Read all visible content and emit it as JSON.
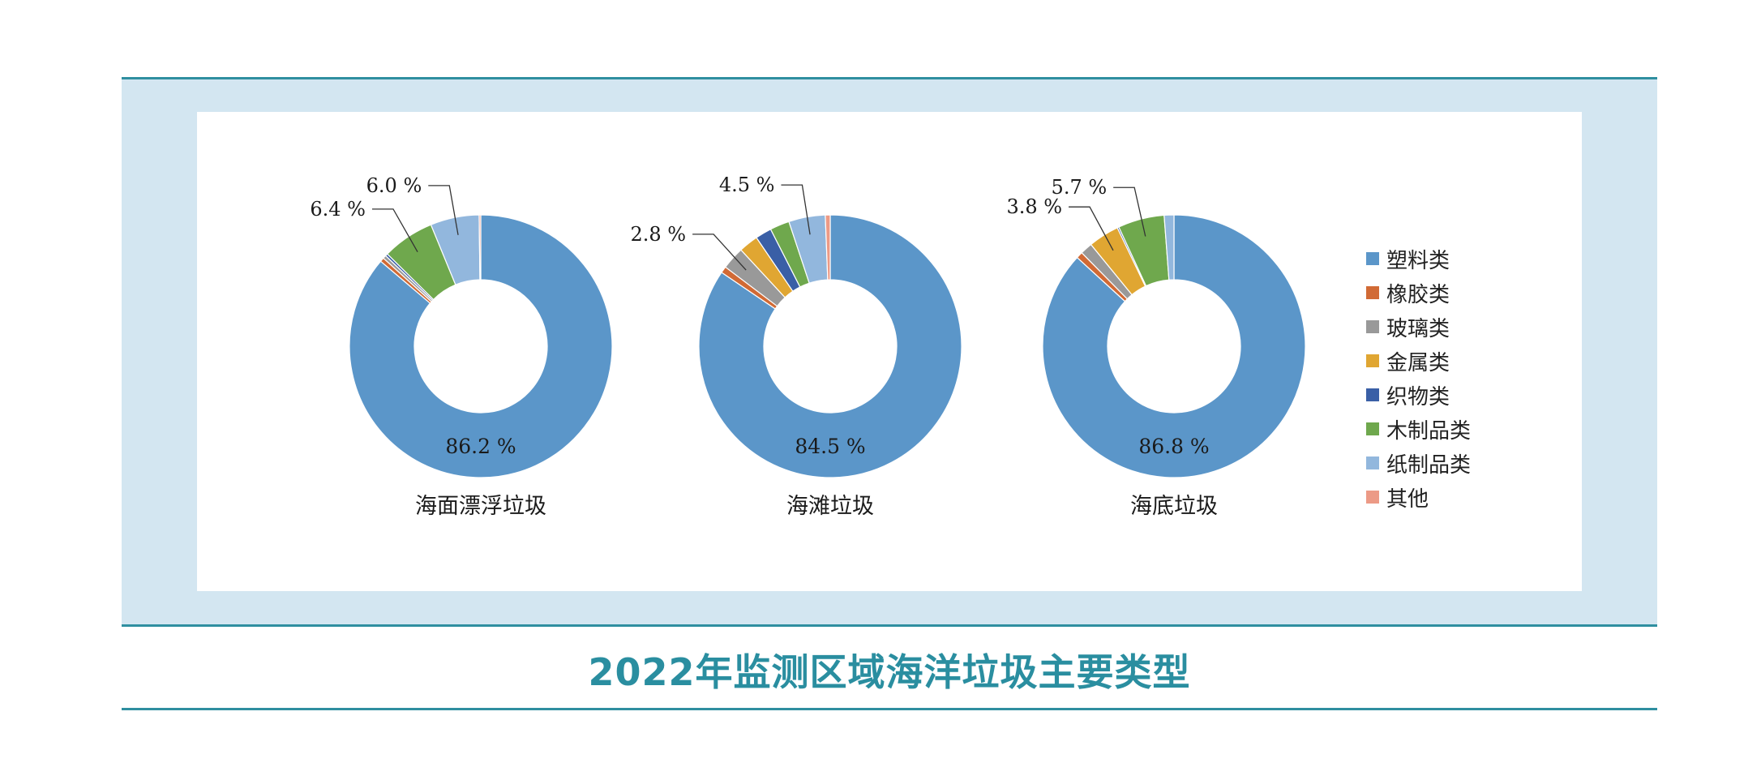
{
  "title": "2022年监测区域海洋垃圾主要类型",
  "colors": {
    "塑料类": "#5b96c9",
    "橡胶类": "#d16a35",
    "玻璃类": "#999999",
    "金属类": "#e0a632",
    "织物类": "#3a5fa6",
    "木制品类": "#6fa84d",
    "纸制品类": "#92b7dd",
    "其他": "#ec9a86"
  },
  "legend": [
    "塑料类",
    "橡胶类",
    "玻璃类",
    "金属类",
    "织物类",
    "木制品类",
    "纸制品类",
    "其他"
  ],
  "chart_data": [
    {
      "type": "pie",
      "title": "海面漂浮垃圾",
      "categories": [
        "塑料类",
        "橡胶类",
        "玻璃类",
        "金属类",
        "织物类",
        "木制品类",
        "纸制品类",
        "其他"
      ],
      "values": [
        86.2,
        0.5,
        0.4,
        0.0,
        0.3,
        6.4,
        6.0,
        0.2
      ],
      "labels": [
        {
          "category": "塑料类",
          "text": "86.2 %"
        },
        {
          "category": "木制品类",
          "text": "6.4 %"
        },
        {
          "category": "纸制品类",
          "text": "6.0 %"
        }
      ]
    },
    {
      "type": "pie",
      "title": "海滩垃圾",
      "categories": [
        "塑料类",
        "橡胶类",
        "玻璃类",
        "金属类",
        "织物类",
        "木制品类",
        "纸制品类",
        "其他"
      ],
      "values": [
        84.5,
        0.8,
        2.8,
        2.4,
        2.0,
        2.4,
        4.5,
        0.6
      ],
      "labels": [
        {
          "category": "塑料类",
          "text": "84.5 %"
        },
        {
          "category": "玻璃类",
          "text": "2.8 %"
        },
        {
          "category": "纸制品类",
          "text": "4.5 %"
        }
      ]
    },
    {
      "type": "pie",
      "title": "海底垃圾",
      "categories": [
        "塑料类",
        "橡胶类",
        "玻璃类",
        "金属类",
        "织物类",
        "木制品类",
        "纸制品类",
        "其他"
      ],
      "values": [
        86.8,
        0.8,
        1.5,
        3.8,
        0.2,
        5.7,
        1.2,
        0.0
      ],
      "labels": [
        {
          "category": "塑料类",
          "text": "86.8 %"
        },
        {
          "category": "金属类",
          "text": "3.8 %"
        },
        {
          "category": "木制品类",
          "text": "5.7 %"
        }
      ]
    }
  ]
}
